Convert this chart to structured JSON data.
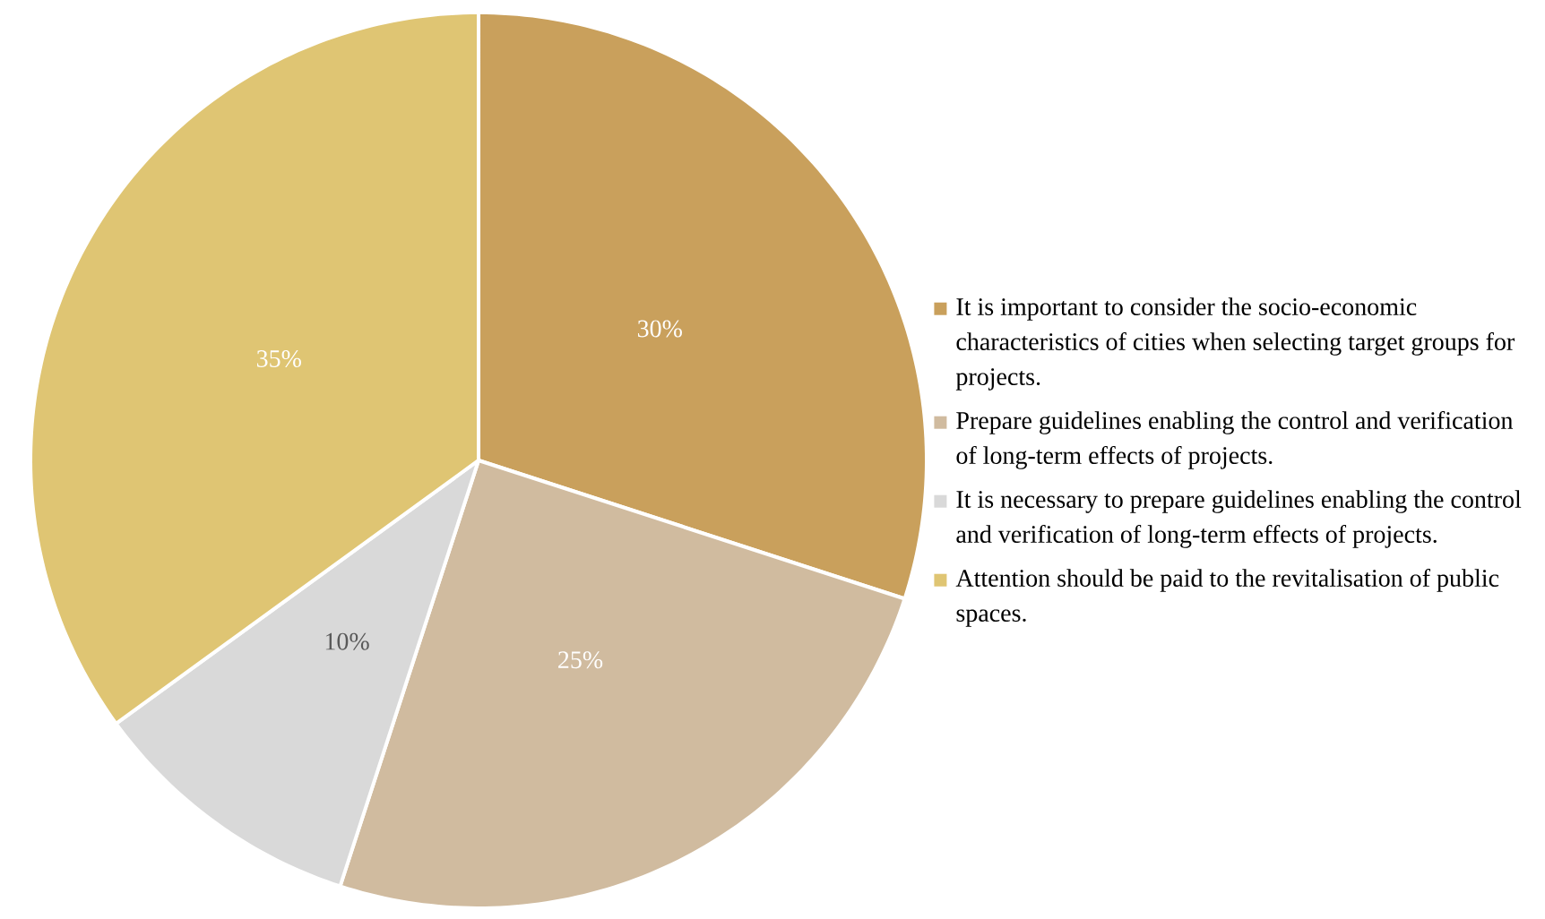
{
  "chart_data": {
    "type": "pie",
    "categories": [
      "It is important to consider the socio-economic characteristics of cities when selecting target groups for projects.",
      "Prepare guidelines enabling the control and verification of long-term effects of projects.",
      "It is necessary to prepare guidelines enabling the control and verification of long-term effects of projects.",
      "Attention should be paid to the revitalisation of public spaces."
    ],
    "values": [
      30,
      25,
      10,
      35
    ],
    "value_labels": [
      "30%",
      "25%",
      "10%",
      "35%"
    ],
    "colors": [
      "#c9a05c",
      "#d0bb9f",
      "#d9d9d9",
      "#dfc573"
    ],
    "legend": "right"
  }
}
